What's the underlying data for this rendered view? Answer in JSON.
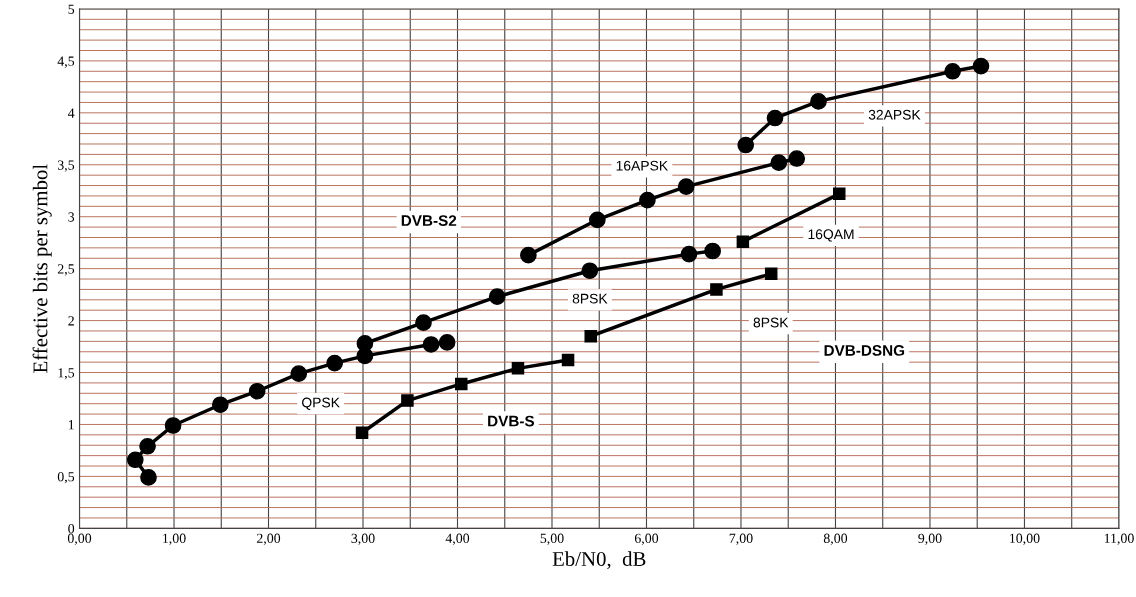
{
  "chart_data": {
    "type": "line",
    "xlabel": "Eb/N0,  dB",
    "ylabel": "Effective bits per symbol",
    "grid": true,
    "marker": "circle",
    "line_style": "solid",
    "xlim": [
      0,
      11
    ],
    "ylim": [
      0,
      5
    ],
    "xticks": [
      {
        "value": 0,
        "label": "0,00"
      },
      {
        "value": 0.5,
        "label": null
      },
      {
        "value": 1,
        "label": "1,00"
      },
      {
        "value": 1.5,
        "label": null
      },
      {
        "value": 2,
        "label": "2,00"
      },
      {
        "value": 2.5,
        "label": null
      },
      {
        "value": 3,
        "label": "3,00"
      },
      {
        "value": 3.5,
        "label": null
      },
      {
        "value": 4,
        "label": "4,00"
      },
      {
        "value": 4.5,
        "label": null
      },
      {
        "value": 5,
        "label": "5,00"
      },
      {
        "value": 5.5,
        "label": null
      },
      {
        "value": 6,
        "label": "6,00"
      },
      {
        "value": 6.5,
        "label": null
      },
      {
        "value": 7,
        "label": "7,00"
      },
      {
        "value": 7.5,
        "label": null
      },
      {
        "value": 8,
        "label": "8,00"
      },
      {
        "value": 8.5,
        "label": null
      },
      {
        "value": 9,
        "label": "9,00"
      },
      {
        "value": 9.5,
        "label": null
      },
      {
        "value": 10,
        "label": "10,00"
      },
      {
        "value": 10.5,
        "label": null
      },
      {
        "value": 11,
        "label": "11,00"
      }
    ],
    "yticks": [
      0,
      {
        "value": 0.1,
        "label": null
      },
      {
        "value": 0.2,
        "label": null
      },
      {
        "value": 0.3,
        "label": null
      },
      {
        "value": 0.4,
        "label": null
      },
      {
        "value": 0.5,
        "label": "0,5"
      },
      {
        "value": 0.6,
        "label": null
      },
      {
        "value": 0.7,
        "label": null
      },
      {
        "value": 0.8,
        "label": null
      },
      {
        "value": 0.9,
        "label": null
      },
      1,
      {
        "value": 1.1,
        "label": null
      },
      {
        "value": 1.2,
        "label": null
      },
      {
        "value": 1.3,
        "label": null
      },
      {
        "value": 1.4,
        "label": null
      },
      {
        "value": 1.5,
        "label": "1,5"
      },
      {
        "value": 1.6,
        "label": null
      },
      {
        "value": 1.7,
        "label": null
      },
      {
        "value": 1.8,
        "label": null
      },
      {
        "value": 1.9,
        "label": null
      },
      2,
      {
        "value": 2.1,
        "label": null
      },
      {
        "value": 2.2,
        "label": null
      },
      {
        "value": 2.3,
        "label": null
      },
      {
        "value": 2.4,
        "label": null
      },
      {
        "value": 2.5,
        "label": "2,5"
      },
      {
        "value": 2.6,
        "label": null
      },
      {
        "value": 2.7,
        "label": null
      },
      {
        "value": 2.8,
        "label": null
      },
      {
        "value": 2.9,
        "label": null
      },
      3,
      {
        "value": 3.1,
        "label": null
      },
      {
        "value": 3.2,
        "label": null
      },
      {
        "value": 3.3,
        "label": null
      },
      {
        "value": 3.4,
        "label": null
      },
      {
        "value": 3.5,
        "label": "3,5"
      },
      {
        "value": 3.6,
        "label": null
      },
      {
        "value": 3.7,
        "label": null
      },
      {
        "value": 3.8,
        "label": null
      },
      {
        "value": 3.9,
        "label": null
      },
      4,
      {
        "value": 4.1,
        "label": null
      },
      {
        "value": 4.2,
        "label": null
      },
      {
        "value": 4.3,
        "label": null
      },
      {
        "value": 4.4,
        "label": null
      },
      {
        "value": 4.5,
        "label": "4,5"
      },
      {
        "value": 4.6,
        "label": null
      },
      {
        "value": 4.7,
        "label": null
      },
      {
        "value": 4.8,
        "label": null
      },
      {
        "value": 4.9,
        "label": null
      },
      5
    ],
    "series": [
      {
        "name": "QPSK",
        "color": "#000000",
        "x": [
          0.73,
          0.59,
          0.72,
          0.99,
          1.49,
          1.88,
          2.32,
          2.7,
          3.02,
          3.72,
          3.89
        ],
        "values": [
          0.49,
          0.66,
          0.79,
          0.99,
          1.19,
          1.32,
          1.49,
          1.59,
          1.66,
          1.77,
          1.79
        ]
      },
      {
        "name": "8PSK",
        "color": "#000000",
        "x": [
          3.02,
          3.64,
          4.42,
          5.4,
          6.45,
          6.7
        ],
        "values": [
          1.78,
          1.98,
          2.23,
          2.48,
          2.64,
          2.67
        ]
      },
      {
        "name": "16APSK",
        "color": "#000000",
        "x": [
          4.75,
          5.48,
          6.01,
          6.42,
          7.4,
          7.59
        ],
        "values": [
          2.63,
          2.97,
          3.16,
          3.29,
          3.52,
          3.56
        ]
      },
      {
        "name": "32APSK",
        "color": "#000000",
        "x": [
          7.05,
          7.36,
          7.82,
          9.24,
          9.54
        ],
        "values": [
          3.69,
          3.95,
          4.11,
          4.4,
          4.45
        ]
      },
      {
        "color": "#000000",
        "marker": "square",
        "x": [
          2.99,
          3.47,
          4.04,
          4.64,
          5.17
        ],
        "values": [
          0.92,
          1.23,
          1.39,
          1.54,
          1.62
        ]
      },
      {
        "name": "8PSK",
        "color": "#000000",
        "marker": "square",
        "x": [
          5.41,
          6.74,
          7.32
        ],
        "values": [
          1.85,
          2.3,
          2.45
        ]
      },
      {
        "name": "16QAM",
        "color": "#000000",
        "marker": "square",
        "x": [
          7.02,
          8.04
        ],
        "values": [
          2.76,
          3.22
        ]
      }
    ],
    "annotations": [
      "DVB-S2",
      "DVB-S",
      "DVB-DSNG"
    ]
  }
}
